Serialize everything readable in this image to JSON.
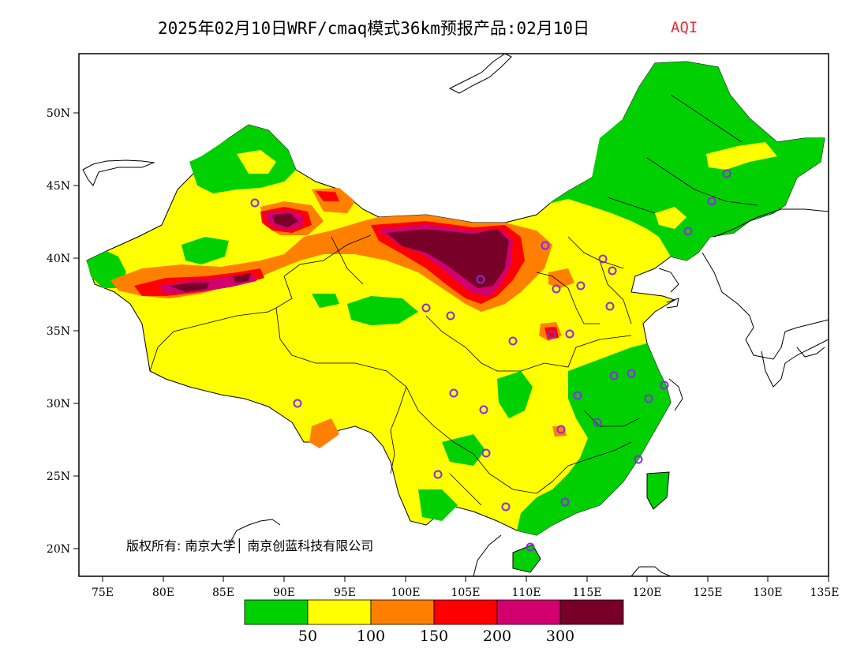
{
  "title": {
    "main": "2025年02月10日WRF/cmaq模式36km预报产品:02月10日",
    "variable": "AQI"
  },
  "axes": {
    "lat_labels": [
      "50N",
      "45N",
      "40N",
      "35N",
      "30N",
      "25N",
      "20N"
    ],
    "lon_labels": [
      "75E",
      "80E",
      "85E",
      "90E",
      "95E",
      "100E",
      "105E",
      "110E",
      "115E",
      "120E",
      "125E",
      "130E",
      "135E"
    ]
  },
  "legend": {
    "colors": [
      "#00d000",
      "#ffff00",
      "#ff8000",
      "#ff0000",
      "#d2006e",
      "#780028"
    ],
    "labels": [
      "50",
      "100",
      "150",
      "200",
      "300"
    ]
  },
  "copyright": "版权所有: 南京大学│ 南京创蓝科技有限公司",
  "colors": {
    "title_accent": "#e0323a",
    "station_marker": "#8a2be2"
  }
}
